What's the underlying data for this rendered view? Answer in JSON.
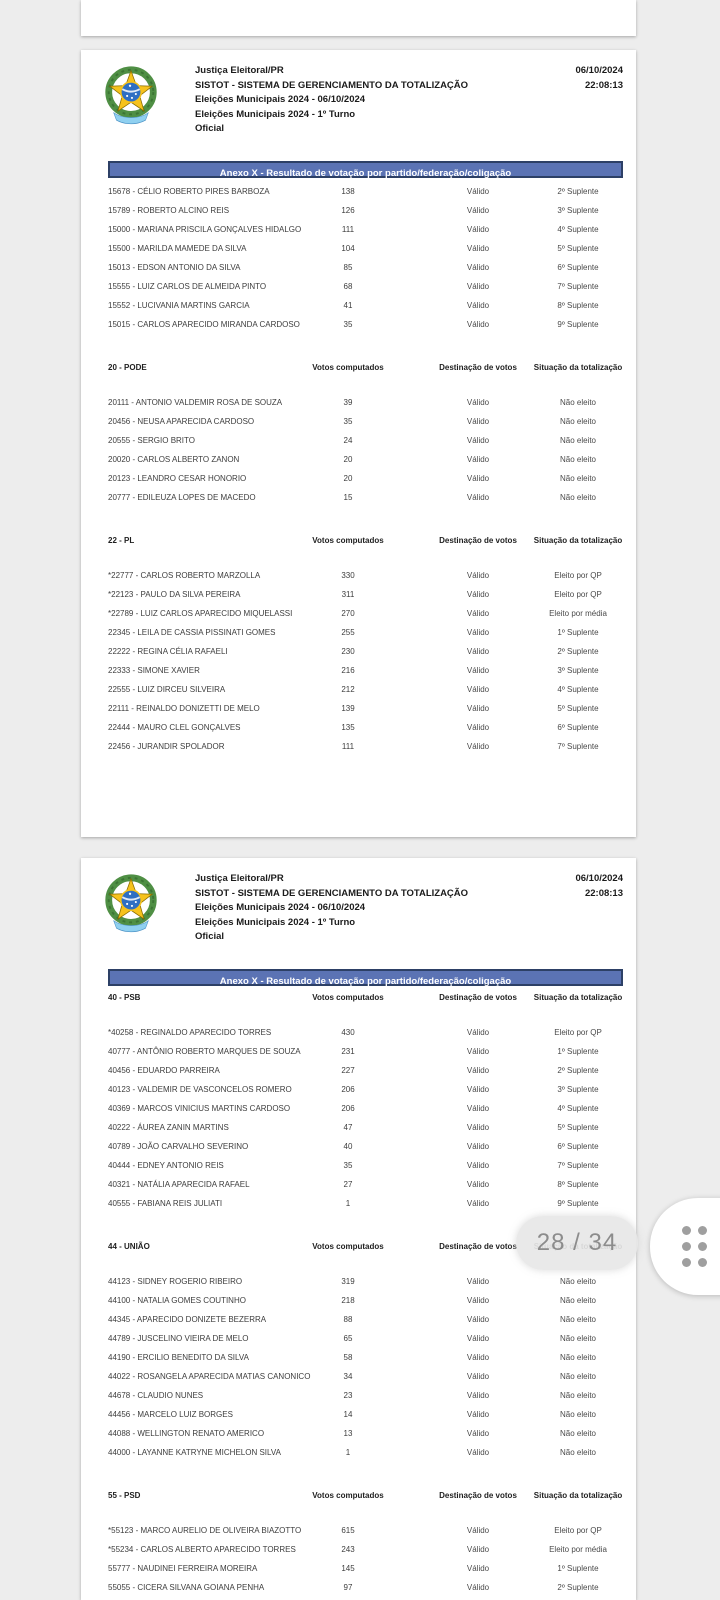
{
  "viewer": {
    "page_indicator": "28 / 34",
    "icons": {
      "scroll_handle": "grip-dots-icon",
      "document_logo": "brazil-coat-of-arms"
    },
    "colors": {
      "background": "#ededed",
      "page": "#ffffff",
      "pill_text": "#8c8c8c"
    }
  },
  "document": {
    "header": {
      "org": "Justiça Eleitoral/PR",
      "system": "SISTOT - SISTEMA DE GERENCIAMENTO DA TOTALIZAÇÃO",
      "election": "Eleições Municipais 2024 - 06/10/2024",
      "round": "Eleições Municipais 2024 - 1º Turno",
      "status": "Oficial",
      "date": "06/10/2024",
      "time": "22:08:13"
    },
    "banner": "Anexo X - Resultado de votação por partido/federação/coligação",
    "columns": {
      "votes": "Votos computados",
      "destination": "Destinação de votos",
      "situation": "Situação da totalização"
    },
    "colors": {
      "banner_bg": "#5b73b4",
      "banner_border": "#2d4066",
      "banner_text": "#ffffff"
    }
  },
  "pages": [
    {
      "sections": [
        {
          "party": null,
          "rows": [
            {
              "c": "15678 - CÉLIO ROBERTO PIRES BARBOZA",
              "v": "138",
              "d": "Válido",
              "s": "2º Suplente"
            },
            {
              "c": "15789 - ROBERTO ALCINO REIS",
              "v": "126",
              "d": "Válido",
              "s": "3º Suplente"
            },
            {
              "c": "15000 - MARIANA PRISCILA GONÇALVES HIDALGO",
              "v": "111",
              "d": "Válido",
              "s": "4º Suplente"
            },
            {
              "c": "15500 - MARILDA MAMEDE DA SILVA",
              "v": "104",
              "d": "Válido",
              "s": "5º Suplente"
            },
            {
              "c": "15013 - EDSON ANTONIO DA SILVA",
              "v": "85",
              "d": "Válido",
              "s": "6º Suplente"
            },
            {
              "c": "15555 - LUIZ CARLOS DE ALMEIDA PINTO",
              "v": "68",
              "d": "Válido",
              "s": "7º Suplente"
            },
            {
              "c": "15552 - LUCIVANIA MARTINS GARCIA",
              "v": "41",
              "d": "Válido",
              "s": "8º Suplente"
            },
            {
              "c": "15015 - CARLOS APARECIDO MIRANDA CARDOSO",
              "v": "35",
              "d": "Válido",
              "s": "9º Suplente"
            }
          ]
        },
        {
          "party": "20 - PODE",
          "rows": [
            {
              "c": "20111 - ANTONIO VALDEMIR ROSA DE SOUZA",
              "v": "39",
              "d": "Válido",
              "s": "Não eleito"
            },
            {
              "c": "20456 - NEUSA APARECIDA CARDOSO",
              "v": "35",
              "d": "Válido",
              "s": "Não eleito"
            },
            {
              "c": "20555 - SERGIO BRITO",
              "v": "24",
              "d": "Válido",
              "s": "Não eleito"
            },
            {
              "c": "20020 - CARLOS ALBERTO ZANON",
              "v": "20",
              "d": "Válido",
              "s": "Não eleito"
            },
            {
              "c": "20123 - LEANDRO CESAR HONORIO",
              "v": "20",
              "d": "Válido",
              "s": "Não eleito"
            },
            {
              "c": "20777 - EDILEUZA LOPES DE MACEDO",
              "v": "15",
              "d": "Válido",
              "s": "Não eleito"
            }
          ]
        },
        {
          "party": "22 - PL",
          "rows": [
            {
              "c": "*22777 - CARLOS ROBERTO MARZOLLA",
              "v": "330",
              "d": "Válido",
              "s": "Eleito por QP"
            },
            {
              "c": "*22123 - PAULO DA SILVA PEREIRA",
              "v": "311",
              "d": "Válido",
              "s": "Eleito por QP"
            },
            {
              "c": "*22789 - LUIZ CARLOS APARECIDO MIQUELASSI",
              "v": "270",
              "d": "Válido",
              "s": "Eleito por média"
            },
            {
              "c": "22345 - LEILA DE CASSIA PISSINATI GOMES",
              "v": "255",
              "d": "Válido",
              "s": "1º Suplente"
            },
            {
              "c": "22222 - REGINA CÉLIA RAFAELI",
              "v": "230",
              "d": "Válido",
              "s": "2º Suplente"
            },
            {
              "c": "22333 - SIMONE XAVIER",
              "v": "216",
              "d": "Válido",
              "s": "3º Suplente"
            },
            {
              "c": "22555 - LUIZ DIRCEU SILVEIRA",
              "v": "212",
              "d": "Válido",
              "s": "4º Suplente"
            },
            {
              "c": "22111 - REINALDO DONIZETTI DE MELO",
              "v": "139",
              "d": "Válido",
              "s": "5º Suplente"
            },
            {
              "c": "22444 - MAURO CLEL GONÇALVES",
              "v": "135",
              "d": "Válido",
              "s": "6º Suplente"
            },
            {
              "c": "22456 - JURANDIR SPOLADOR",
              "v": "111",
              "d": "Válido",
              "s": "7º Suplente"
            }
          ]
        }
      ]
    },
    {
      "sections": [
        {
          "party": "40 - PSB",
          "attached": true,
          "rows": [
            {
              "c": "*40258 - REGINALDO APARECIDO TORRES",
              "v": "430",
              "d": "Válido",
              "s": "Eleito por QP"
            },
            {
              "c": "40777 - ANTÔNIO ROBERTO MARQUES DE SOUZA",
              "v": "231",
              "d": "Válido",
              "s": "1º Suplente"
            },
            {
              "c": "40456 - EDUARDO PARREIRA",
              "v": "227",
              "d": "Válido",
              "s": "2º Suplente"
            },
            {
              "c": "40123 - VALDEMIR DE VASCONCELOS ROMERO",
              "v": "206",
              "d": "Válido",
              "s": "3º Suplente"
            },
            {
              "c": "40369 - MARCOS VINICIUS MARTINS CARDOSO",
              "v": "206",
              "d": "Válido",
              "s": "4º Suplente"
            },
            {
              "c": "40222 - ÁUREA ZANIN MARTINS",
              "v": "47",
              "d": "Válido",
              "s": "5º Suplente"
            },
            {
              "c": "40789 - JOÃO CARVALHO SEVERINO",
              "v": "40",
              "d": "Válido",
              "s": "6º Suplente"
            },
            {
              "c": "40444 - EDNEY ANTONIO REIS",
              "v": "35",
              "d": "Válido",
              "s": "7º Suplente"
            },
            {
              "c": "40321 - NATÁLIA APARECIDA RAFAEL",
              "v": "27",
              "d": "Válido",
              "s": "8º Suplente"
            },
            {
              "c": "40555 - FABIANA REIS JULIATI",
              "v": "1",
              "d": "Válido",
              "s": "9º Suplente"
            }
          ]
        },
        {
          "party": "44 - UNIÃO",
          "rows": [
            {
              "c": "44123 - SIDNEY ROGERIO RIBEIRO",
              "v": "319",
              "d": "Válido",
              "s": "Não eleito"
            },
            {
              "c": "44100 - NATALIA GOMES COUTINHO",
              "v": "218",
              "d": "Válido",
              "s": "Não eleito"
            },
            {
              "c": "44345 - APARECIDO DONIZETE BEZERRA",
              "v": "88",
              "d": "Válido",
              "s": "Não eleito"
            },
            {
              "c": "44789 - JUSCELINO VIEIRA DE MELO",
              "v": "65",
              "d": "Válido",
              "s": "Não eleito"
            },
            {
              "c": "44190 - ERCILIO BENEDITO DA SILVA",
              "v": "58",
              "d": "Válido",
              "s": "Não eleito"
            },
            {
              "c": "44022 - ROSANGELA APARECIDA MATIAS CANONICO",
              "v": "34",
              "d": "Válido",
              "s": "Não eleito"
            },
            {
              "c": "44678 - CLAUDIO NUNES",
              "v": "23",
              "d": "Válido",
              "s": "Não eleito"
            },
            {
              "c": "44456 - MARCELO LUIZ BORGES",
              "v": "14",
              "d": "Válido",
              "s": "Não eleito"
            },
            {
              "c": "44088 - WELLINGTON RENATO AMERICO",
              "v": "13",
              "d": "Válido",
              "s": "Não eleito"
            },
            {
              "c": "44000 - LAYANNE KATRYNE MICHELON SILVA",
              "v": "1",
              "d": "Válido",
              "s": "Não eleito"
            }
          ]
        },
        {
          "party": "55 - PSD",
          "rows": [
            {
              "c": "*55123 - MARCO AURELIO DE OLIVEIRA BIAZOTTO",
              "v": "615",
              "d": "Válido",
              "s": "Eleito por QP"
            },
            {
              "c": "*55234 - CARLOS ALBERTO APARECIDO TORRES",
              "v": "243",
              "d": "Válido",
              "s": "Eleito por média"
            },
            {
              "c": "55777 - NAUDINEI FERREIRA MOREIRA",
              "v": "145",
              "d": "Válido",
              "s": "1º Suplente"
            },
            {
              "c": "55055 - CICERA SILVANA GOIANA PENHA",
              "v": "97",
              "d": "Válido",
              "s": "2º Suplente"
            }
          ]
        }
      ]
    }
  ]
}
